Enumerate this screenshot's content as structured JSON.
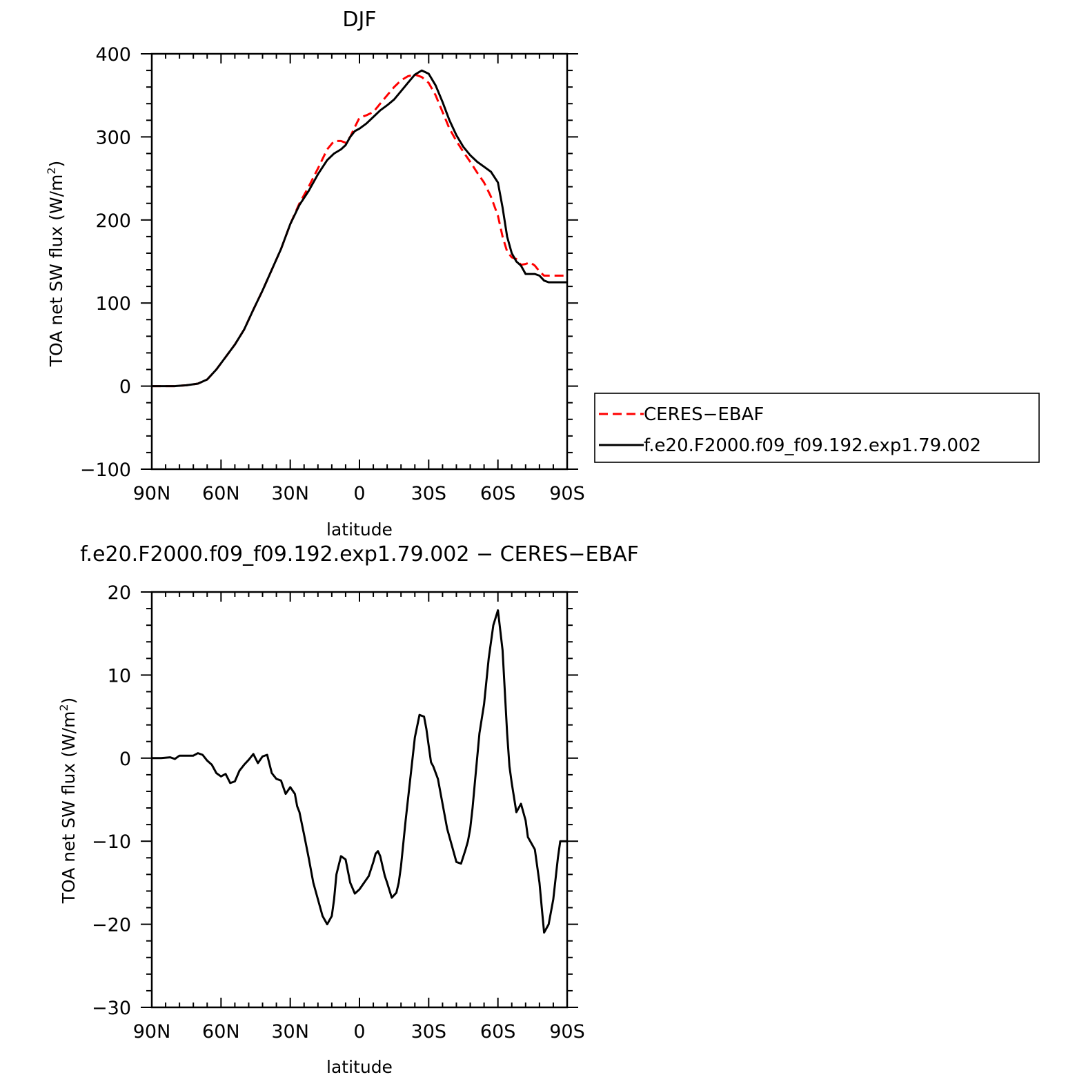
{
  "figure": {
    "top_title": "DJF",
    "bottom_title": "f.e20.F2000.f09_f09.192.exp1.79.002 − CERES−EBAF"
  },
  "chart_data": [
    {
      "type": "line",
      "title": "DJF",
      "xlabel": "latitude",
      "ylabel": "TOA net SW flux (W/m²)",
      "ylabel_parts": {
        "main": "TOA net SW flux (W/m",
        "sup": "2",
        "close": ")"
      },
      "xlim": [
        90,
        -90
      ],
      "ylim": [
        -100,
        400
      ],
      "x_ticks": [
        90,
        60,
        30,
        0,
        -30,
        -60,
        -90
      ],
      "x_tick_labels": [
        "90N",
        "60N",
        "30N",
        "0",
        "30S",
        "60S",
        "90S"
      ],
      "y_ticks": [
        -100,
        0,
        100,
        200,
        300,
        400
      ],
      "y_tick_labels": [
        "−100",
        "0",
        "100",
        "200",
        "300",
        "400"
      ],
      "grid": false,
      "legend_position": "right",
      "series": [
        {
          "name": "CERES−EBAF",
          "color": "#ff0000",
          "style": "dashed",
          "x": [
            90,
            85,
            80,
            75,
            70,
            66,
            62,
            58,
            54,
            50,
            46,
            42,
            38,
            34,
            30,
            26,
            22,
            18,
            14,
            11,
            8,
            6,
            4,
            2,
            0,
            -3,
            -6,
            -9,
            -12,
            -15,
            -18,
            -21,
            -24,
            -27,
            -30,
            -33,
            -36,
            -39,
            -42,
            -45,
            -48,
            -51,
            -54,
            -57,
            -60,
            -62,
            -64,
            -66,
            -68,
            -70,
            -72,
            -74,
            -76,
            -78,
            -80,
            -82,
            -84,
            -86,
            -88,
            -90
          ],
          "y": [
            0,
            0,
            0,
            1,
            3,
            8,
            20,
            35,
            50,
            68,
            92,
            115,
            140,
            165,
            195,
            220,
            240,
            262,
            285,
            295,
            295,
            293,
            300,
            312,
            323,
            326,
            330,
            340,
            350,
            360,
            368,
            373,
            375,
            372,
            365,
            350,
            330,
            310,
            295,
            282,
            270,
            257,
            245,
            228,
            205,
            180,
            162,
            155,
            153,
            146,
            147,
            149,
            145,
            138,
            133,
            133,
            133,
            133,
            133,
            133
          ]
        },
        {
          "name": "f.e20.F2000.f09_f09.192.exp1.79.002",
          "color": "#000000",
          "style": "solid",
          "x": [
            90,
            85,
            80,
            75,
            70,
            66,
            62,
            58,
            54,
            50,
            46,
            42,
            38,
            34,
            30,
            26,
            22,
            18,
            14,
            11,
            8,
            6,
            4,
            2,
            0,
            -3,
            -6,
            -9,
            -12,
            -15,
            -18,
            -21,
            -24,
            -27,
            -30,
            -33,
            -36,
            -39,
            -42,
            -45,
            -48,
            -51,
            -54,
            -57,
            -60,
            -62,
            -64,
            -66,
            -68,
            -70,
            -72,
            -74,
            -76,
            -78,
            -80,
            -82,
            -84,
            -86,
            -88,
            -90
          ],
          "y": [
            0,
            0,
            0,
            1,
            3,
            8,
            20,
            35,
            50,
            68,
            92,
            115,
            140,
            165,
            195,
            218,
            235,
            255,
            272,
            280,
            285,
            290,
            300,
            307,
            310,
            316,
            324,
            332,
            338,
            345,
            355,
            365,
            375,
            380,
            376,
            362,
            342,
            320,
            302,
            288,
            278,
            270,
            264,
            258,
            245,
            215,
            180,
            160,
            150,
            145,
            135,
            135,
            135,
            133,
            127,
            125,
            125,
            125,
            125,
            125
          ]
        }
      ]
    },
    {
      "type": "line",
      "title": "f.e20.F2000.f09_f09.192.exp1.79.002 − CERES−EBAF",
      "xlabel": "latitude",
      "ylabel": "TOA net SW flux (W/m²)",
      "ylabel_parts": {
        "main": "TOA net SW flux (W/m",
        "sup": "2",
        "close": ")"
      },
      "xlim": [
        90,
        -90
      ],
      "ylim": [
        -30,
        20
      ],
      "x_ticks": [
        90,
        60,
        30,
        0,
        -30,
        -60,
        -90
      ],
      "x_tick_labels": [
        "90N",
        "60N",
        "30N",
        "0",
        "30S",
        "60S",
        "90S"
      ],
      "y_ticks": [
        -30,
        -20,
        -10,
        0,
        10,
        20
      ],
      "y_tick_labels": [
        "−30",
        "−20",
        "−10",
        "0",
        "10",
        "20"
      ],
      "grid": false,
      "series": [
        {
          "color": "#000000",
          "style": "solid",
          "x": [
            90,
            86,
            82,
            80,
            78,
            74,
            72,
            70,
            68,
            66,
            64,
            62,
            60,
            58,
            56,
            54,
            52,
            50,
            48,
            46,
            44,
            42,
            40,
            38,
            36,
            34,
            32,
            30,
            28,
            27,
            26,
            24,
            22,
            20,
            18,
            16,
            14,
            12,
            11,
            10,
            8,
            6,
            4,
            2,
            0,
            -2,
            -4,
            -6,
            -7,
            -8,
            -9,
            -10,
            -11,
            -12,
            -14,
            -16,
            -17,
            -18,
            -20,
            -22,
            -24,
            -26,
            -28,
            -29,
            -30,
            -31,
            -32,
            -34,
            -36,
            -38,
            -40,
            -42,
            -44,
            -46,
            -47,
            -48,
            -49,
            -50,
            -52,
            -54,
            -56,
            -58,
            -60,
            -62,
            -64,
            -65,
            -66,
            -68,
            -70,
            -72,
            -73,
            -74,
            -76,
            -78,
            -79,
            -80,
            -82,
            -84,
            -86,
            -87,
            -88,
            -89,
            -90
          ],
          "y": [
            0,
            0,
            0.1,
            -0.1,
            0.3,
            0.3,
            0.3,
            0.6,
            0.4,
            -0.3,
            -0.8,
            -1.8,
            -2.2,
            -1.9,
            -3,
            -2.8,
            -1.5,
            -0.8,
            -0.2,
            0.5,
            -0.6,
            0.2,
            0.4,
            -1.8,
            -2.5,
            -2.7,
            -4.3,
            -3.5,
            -4.3,
            -5.8,
            -6.5,
            -9.2,
            -12,
            -15,
            -17,
            -19,
            -20,
            -19,
            -17,
            -14,
            -11.8,
            -12.2,
            -15,
            -16.3,
            -15.8,
            -15,
            -14.2,
            -12.5,
            -11.5,
            -11.2,
            -11.8,
            -13,
            -14.2,
            -15,
            -16.8,
            -16.2,
            -15,
            -13,
            -7.5,
            -2.5,
            2.5,
            5.2,
            5,
            3.5,
            1.5,
            -0.5,
            -1,
            -2.5,
            -5.5,
            -8.5,
            -10.5,
            -12.5,
            -12.7,
            -11,
            -10,
            -8.5,
            -6,
            -3,
            3,
            6.5,
            12,
            16,
            17.8,
            13,
            3,
            -1,
            -3,
            -6.5,
            -5.5,
            -7.5,
            -9.5,
            -10,
            -11,
            -15,
            -18,
            -21,
            -20,
            -17,
            -12,
            -10,
            -10,
            -10,
            -10
          ]
        }
      ]
    }
  ]
}
